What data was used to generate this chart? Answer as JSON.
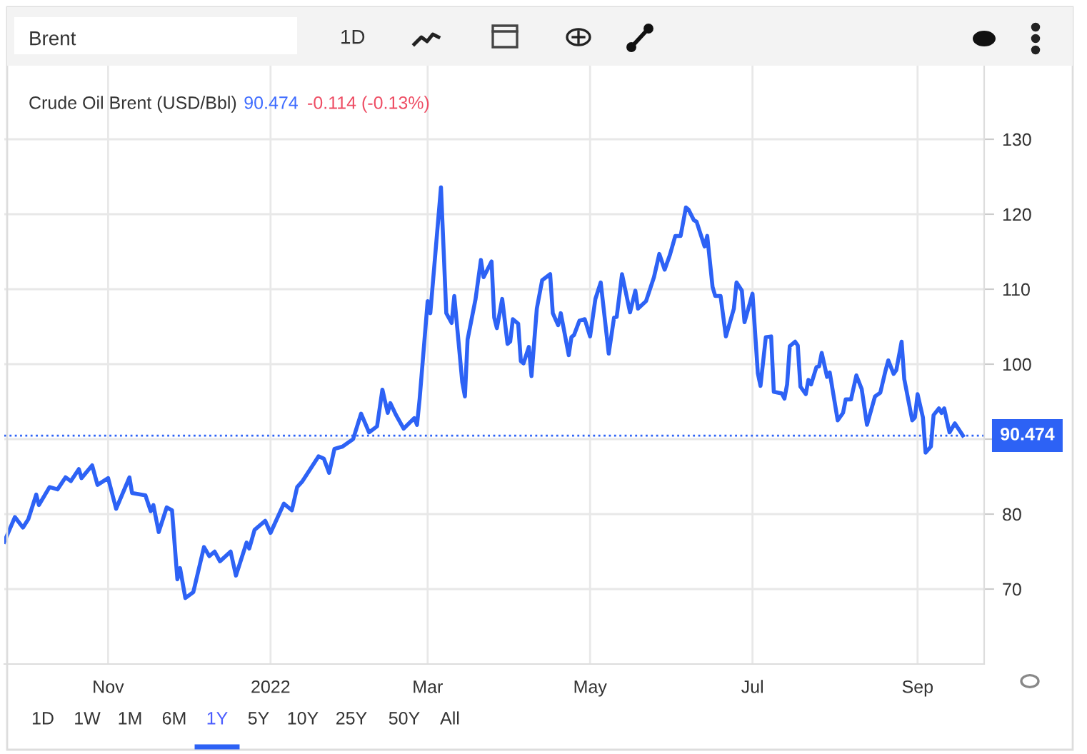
{
  "chart_data": {
    "type": "line",
    "title": "Crude Oil Brent (USD/Bbl)",
    "annotations": [
      "90.474",
      "-0.114 (-0.13%)",
      "Brent",
      "1D",
      "1D",
      "1W",
      "1M",
      "6M",
      "1Y",
      "5Y",
      "10Y",
      "25Y",
      "50Y",
      "All"
    ],
    "x": [
      "2021-09-23",
      "2021-09-27",
      "2021-09-30",
      "2021-10-02",
      "2021-10-05",
      "2021-10-06",
      "2021-10-10",
      "2021-10-13",
      "2021-10-16",
      "2021-10-18",
      "2021-10-21",
      "2021-10-22",
      "2021-10-26",
      "2021-10-28",
      "2021-11-01",
      "2021-11-04",
      "2021-11-09",
      "2021-11-10",
      "2021-11-15",
      "2021-11-17",
      "2021-11-18",
      "2021-11-20",
      "2021-11-23",
      "2021-11-25",
      "2021-11-27",
      "2021-11-28",
      "2021-11-30",
      "2021-12-03",
      "2021-12-07",
      "2021-12-09",
      "2021-12-11",
      "2021-12-13",
      "2021-12-17",
      "2021-12-19",
      "2021-12-23",
      "2021-12-24",
      "2021-12-26",
      "2021-12-30",
      "2022-01-01",
      "2022-01-06",
      "2022-01-09",
      "2022-01-11",
      "2022-01-13",
      "2022-01-15",
      "2022-01-19",
      "2022-01-21",
      "2022-01-23",
      "2022-01-25",
      "2022-01-28",
      "2022-02-01",
      "2022-02-04",
      "2022-02-07",
      "2022-02-10",
      "2022-02-12",
      "2022-02-14",
      "2022-02-15",
      "2022-02-17",
      "2022-02-20",
      "2022-02-24",
      "2022-02-25",
      "2022-02-26",
      "2022-03-01",
      "2022-03-02",
      "2022-03-06",
      "2022-03-08",
      "2022-03-10",
      "2022-03-11",
      "2022-03-14",
      "2022-03-15",
      "2022-03-16",
      "2022-03-19",
      "2022-03-21",
      "2022-03-22",
      "2022-03-25",
      "2022-03-26",
      "2022-03-27",
      "2022-03-29",
      "2022-03-31",
      "2022-04-01",
      "2022-04-02",
      "2022-04-04",
      "2022-04-05",
      "2022-04-06",
      "2022-04-08",
      "2022-04-09",
      "2022-04-11",
      "2022-04-13",
      "2022-04-16",
      "2022-04-17",
      "2022-04-19",
      "2022-04-20",
      "2022-04-23",
      "2022-04-24",
      "2022-04-25",
      "2022-04-27",
      "2022-04-29",
      "2022-05-01",
      "2022-05-03",
      "2022-05-05",
      "2022-05-08",
      "2022-05-10",
      "2022-05-11",
      "2022-05-13",
      "2022-05-16",
      "2022-05-18",
      "2022-05-19",
      "2022-05-22",
      "2022-05-25",
      "2022-05-27",
      "2022-05-29",
      "2022-05-31",
      "2022-06-02",
      "2022-06-04",
      "2022-06-06",
      "2022-06-07",
      "2022-06-09",
      "2022-06-10",
      "2022-06-13",
      "2022-06-14",
      "2022-06-16",
      "2022-06-17",
      "2022-06-19",
      "2022-06-21",
      "2022-06-24",
      "2022-06-25",
      "2022-06-27",
      "2022-06-28",
      "2022-07-01",
      "2022-07-03",
      "2022-07-04",
      "2022-07-06",
      "2022-07-08",
      "2022-07-09",
      "2022-07-12",
      "2022-07-13",
      "2022-07-14",
      "2022-07-15",
      "2022-07-17",
      "2022-07-18",
      "2022-07-19",
      "2022-07-21",
      "2022-07-22",
      "2022-07-23",
      "2022-07-25",
      "2022-07-26",
      "2022-07-27",
      "2022-07-29",
      "2022-07-30",
      "2022-08-02",
      "2022-08-04",
      "2022-08-05",
      "2022-08-07",
      "2022-08-09",
      "2022-08-11",
      "2022-08-13",
      "2022-08-16",
      "2022-08-18",
      "2022-08-20",
      "2022-08-21",
      "2022-08-23",
      "2022-08-24",
      "2022-08-26",
      "2022-08-27",
      "2022-08-30",
      "2022-08-31",
      "2022-09-01",
      "2022-09-03",
      "2022-09-04",
      "2022-09-06",
      "2022-09-07",
      "2022-09-09",
      "2022-09-10",
      "2022-09-11",
      "2022-09-13",
      "2022-09-15",
      "2022-09-18"
    ],
    "series": [
      {
        "color": "#2d62f5",
        "values": [
          76.3,
          79.6,
          78.2,
          79.3,
          82.6,
          81.2,
          83.6,
          83.3,
          84.9,
          84.4,
          86.0,
          84.8,
          86.5,
          83.9,
          84.8,
          80.7,
          84.9,
          82.8,
          82.5,
          80.4,
          81.2,
          77.6,
          80.9,
          80.5,
          71.3,
          72.8,
          68.8,
          69.6,
          75.6,
          74.4,
          75.0,
          73.7,
          75.0,
          71.8,
          76.2,
          75.4,
          77.9,
          79.1,
          77.5,
          81.4,
          80.5,
          83.6,
          84.4,
          85.5,
          87.7,
          87.4,
          85.5,
          88.7,
          89.0,
          90.0,
          93.4,
          90.9,
          91.7,
          96.6,
          93.5,
          94.8,
          93.3,
          91.4,
          92.8,
          91.9,
          95.4,
          108.4,
          106.8,
          123.6,
          106.8,
          105.5,
          109.1,
          97.6,
          95.7,
          103.3,
          108.7,
          113.9,
          111.6,
          113.7,
          106.2,
          104.8,
          108.7,
          102.7,
          103.0,
          106.0,
          105.4,
          100.4,
          100.1,
          102.3,
          98.4,
          107.4,
          111.2,
          112.0,
          106.8,
          105.2,
          106.8,
          101.2,
          103.6,
          103.9,
          105.8,
          106.0,
          103.7,
          108.7,
          110.9,
          101.4,
          106.2,
          106.3,
          112.0,
          106.9,
          109.8,
          107.4,
          108.4,
          111.6,
          114.7,
          112.6,
          114.6,
          117.1,
          117.1,
          120.9,
          120.6,
          119.2,
          119.0,
          115.7,
          117.1,
          110.3,
          109.1,
          109.1,
          103.7,
          107.4,
          110.9,
          109.8,
          105.6,
          109.4,
          98.8,
          97.1,
          103.6,
          103.7,
          96.3,
          96.1,
          95.4,
          97.3,
          102.4,
          103.0,
          102.5,
          97.0,
          96.0,
          97.9,
          97.3,
          99.6,
          99.7,
          101.5,
          98.3,
          98.9,
          92.5,
          93.5,
          95.3,
          95.3,
          98.5,
          96.7,
          91.9,
          95.7,
          96.2,
          99.2,
          100.5,
          98.7,
          99.2,
          103.0,
          98.0,
          92.5,
          92.9,
          96.0,
          92.9,
          88.2,
          89.0,
          93.2,
          94.1,
          93.5,
          94.1,
          90.9,
          92.1,
          90.474
        ]
      }
    ],
    "xlim": [
      "2021-09-23",
      "2022-09-26"
    ],
    "xticks": [
      {
        "value": "2021-11-01",
        "label": "Nov"
      },
      {
        "value": "2022-01-01",
        "label": "2022"
      },
      {
        "value": "2022-03-01",
        "label": "Mar"
      },
      {
        "value": "2022-05-01",
        "label": "May"
      },
      {
        "value": "2022-07-01",
        "label": "Jul"
      },
      {
        "value": "2022-09-01",
        "label": "Sep"
      }
    ],
    "ylim": [
      60,
      140
    ],
    "yticks": [
      70,
      80,
      {
        "value": 90,
        "label": null
      },
      100,
      110,
      120,
      130
    ],
    "ref_lines": [
      {
        "axis": "y",
        "value": 90.474,
        "label": "90.474",
        "color": "#2d62f5",
        "line_style": "dotted"
      }
    ],
    "grid": true,
    "legend": false,
    "marker": "none",
    "line_style": "solid"
  }
}
